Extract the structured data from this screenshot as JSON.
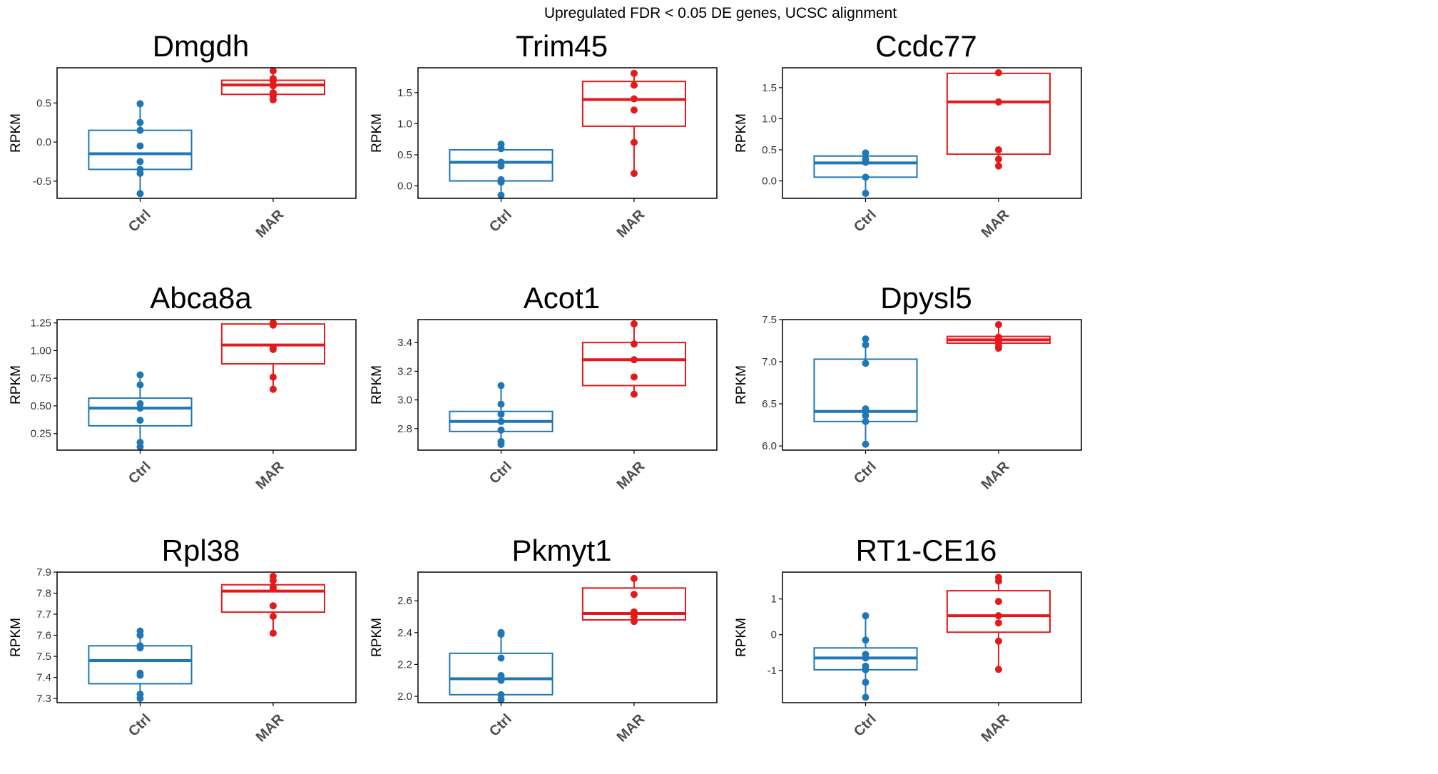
{
  "figure": {
    "suptitle": "Upregulated FDR < 0.05 DE genes, UCSC alignment"
  },
  "colors": {
    "Ctrl": "#1f77b4",
    "MAR": "#e31a1c",
    "axis": "#000000",
    "tick_text": "#333333"
  },
  "chart_data": [
    {
      "type": "box",
      "title": "Dmgdh",
      "ylabel": "RPKM",
      "categories": [
        "Ctrl",
        "MAR"
      ],
      "ylim": [
        -0.72,
        0.95
      ],
      "yticks": [
        -0.5,
        0.0,
        0.5
      ],
      "ytick_labels": [
        "-0.5",
        "0.0",
        "0.5"
      ],
      "boxes": [
        {
          "name": "Ctrl",
          "q1": -0.35,
          "median": -0.15,
          "q3": 0.15,
          "whisker_low": -0.66,
          "whisker_high": 0.49,
          "points": [
            -0.66,
            -0.4,
            -0.35,
            -0.25,
            -0.05,
            0.15,
            0.25,
            0.49
          ]
        },
        {
          "name": "MAR",
          "q1": 0.61,
          "median": 0.73,
          "q3": 0.79,
          "whisker_low": 0.54,
          "whisker_high": 0.91,
          "points": [
            0.54,
            0.59,
            0.63,
            0.72,
            0.78,
            0.81,
            0.91
          ]
        }
      ]
    },
    {
      "type": "box",
      "title": "Trim45",
      "ylabel": "RPKM",
      "categories": [
        "Ctrl",
        "MAR"
      ],
      "ylim": [
        -0.2,
        1.9
      ],
      "yticks": [
        0.0,
        0.5,
        1.0,
        1.5
      ],
      "ytick_labels": [
        "0.0",
        "0.5",
        "1.0",
        "1.5"
      ],
      "boxes": [
        {
          "name": "Ctrl",
          "q1": 0.08,
          "median": 0.38,
          "q3": 0.58,
          "whisker_low": -0.15,
          "whisker_high": 0.67,
          "points": [
            -0.15,
            0.06,
            0.1,
            0.32,
            0.38,
            0.6,
            0.67
          ]
        },
        {
          "name": "MAR",
          "q1": 0.96,
          "median": 1.39,
          "q3": 1.68,
          "whisker_low": 0.2,
          "whisker_high": 1.81,
          "points": [
            0.2,
            0.7,
            1.22,
            1.4,
            1.62,
            1.81
          ]
        }
      ]
    },
    {
      "type": "box",
      "title": "Ccdc77",
      "ylabel": "RPKM",
      "categories": [
        "Ctrl",
        "MAR"
      ],
      "ylim": [
        -0.28,
        1.82
      ],
      "yticks": [
        0.0,
        0.5,
        1.0,
        1.5
      ],
      "ytick_labels": [
        "0.0",
        "0.5",
        "1.0",
        "1.5"
      ],
      "boxes": [
        {
          "name": "Ctrl",
          "q1": 0.06,
          "median": 0.29,
          "q3": 0.4,
          "whisker_low": -0.2,
          "whisker_high": 0.45,
          "points": [
            -0.2,
            0.06,
            0.3,
            0.35,
            0.45
          ]
        },
        {
          "name": "MAR",
          "q1": 0.43,
          "median": 1.27,
          "q3": 1.73,
          "whisker_low": 0.24,
          "whisker_high": 1.74,
          "points": [
            0.24,
            0.35,
            0.5,
            1.27,
            1.74
          ]
        }
      ]
    },
    {
      "type": "box",
      "title": "Abca8a",
      "ylabel": "RPKM",
      "categories": [
        "Ctrl",
        "MAR"
      ],
      "ylim": [
        0.1,
        1.28
      ],
      "yticks": [
        0.25,
        0.5,
        0.75,
        1.0,
        1.25
      ],
      "ytick_labels": [
        "0.25",
        "0.50",
        "0.75",
        "1.00",
        "1.25"
      ],
      "boxes": [
        {
          "name": "Ctrl",
          "q1": 0.32,
          "median": 0.48,
          "q3": 0.57,
          "whisker_low": 0.13,
          "whisker_high": 0.78,
          "points": [
            0.13,
            0.17,
            0.37,
            0.48,
            0.52,
            0.69,
            0.78
          ]
        },
        {
          "name": "MAR",
          "q1": 0.88,
          "median": 1.05,
          "q3": 1.24,
          "whisker_low": 0.65,
          "whisker_high": 1.25,
          "points": [
            0.65,
            0.76,
            1.01,
            1.03,
            1.23,
            1.25
          ]
        }
      ]
    },
    {
      "type": "box",
      "title": "Acot1",
      "ylabel": "RPKM",
      "categories": [
        "Ctrl",
        "MAR"
      ],
      "ylim": [
        2.65,
        3.56
      ],
      "yticks": [
        2.8,
        3.0,
        3.2,
        3.4
      ],
      "ytick_labels": [
        "2.8",
        "3.0",
        "3.2",
        "3.4"
      ],
      "boxes": [
        {
          "name": "Ctrl",
          "q1": 2.78,
          "median": 2.85,
          "q3": 2.92,
          "whisker_low": 2.69,
          "whisker_high": 3.1,
          "points": [
            2.69,
            2.71,
            2.79,
            2.85,
            2.9,
            2.97,
            3.1
          ]
        },
        {
          "name": "MAR",
          "q1": 3.1,
          "median": 3.28,
          "q3": 3.4,
          "whisker_low": 3.04,
          "whisker_high": 3.53,
          "points": [
            3.04,
            3.16,
            3.28,
            3.39,
            3.53
          ]
        }
      ]
    },
    {
      "type": "box",
      "title": "Dpysl5",
      "ylabel": "RPKM",
      "categories": [
        "Ctrl",
        "MAR"
      ],
      "ylim": [
        5.95,
        7.5
      ],
      "yticks": [
        6.0,
        6.5,
        7.0,
        7.5
      ],
      "ytick_labels": [
        "6.0",
        "6.5",
        "7.0",
        "7.5"
      ],
      "boxes": [
        {
          "name": "Ctrl",
          "q1": 6.29,
          "median": 6.41,
          "q3": 7.03,
          "whisker_low": 6.02,
          "whisker_high": 7.27,
          "points": [
            6.02,
            6.29,
            6.36,
            6.41,
            6.44,
            6.98,
            7.2,
            7.27
          ]
        },
        {
          "name": "MAR",
          "q1": 7.22,
          "median": 7.26,
          "q3": 7.3,
          "whisker_low": 7.16,
          "whisker_high": 7.44,
          "points": [
            7.16,
            7.19,
            7.23,
            7.26,
            7.29,
            7.44
          ]
        }
      ]
    },
    {
      "type": "box",
      "title": "Rpl38",
      "ylabel": "RPKM",
      "categories": [
        "Ctrl",
        "MAR"
      ],
      "ylim": [
        7.28,
        7.9
      ],
      "yticks": [
        7.3,
        7.4,
        7.5,
        7.6,
        7.7,
        7.8,
        7.9
      ],
      "ytick_labels": [
        "7.3",
        "7.4",
        "7.5",
        "7.6",
        "7.7",
        "7.8",
        "7.9"
      ],
      "boxes": [
        {
          "name": "Ctrl",
          "q1": 7.37,
          "median": 7.48,
          "q3": 7.55,
          "whisker_low": 7.3,
          "whisker_high": 7.62,
          "points": [
            7.3,
            7.32,
            7.41,
            7.42,
            7.54,
            7.55,
            7.6,
            7.62
          ]
        },
        {
          "name": "MAR",
          "q1": 7.71,
          "median": 7.81,
          "q3": 7.84,
          "whisker_low": 7.61,
          "whisker_high": 7.88,
          "points": [
            7.61,
            7.69,
            7.74,
            7.82,
            7.83,
            7.86,
            7.88
          ]
        }
      ]
    },
    {
      "type": "box",
      "title": "Pkmyt1",
      "ylabel": "RPKM",
      "categories": [
        "Ctrl",
        "MAR"
      ],
      "ylim": [
        1.96,
        2.78
      ],
      "yticks": [
        2.0,
        2.2,
        2.4,
        2.6
      ],
      "ytick_labels": [
        "2.0",
        "2.2",
        "2.4",
        "2.6"
      ],
      "boxes": [
        {
          "name": "Ctrl",
          "q1": 2.01,
          "median": 2.11,
          "q3": 2.27,
          "whisker_low": 1.98,
          "whisker_high": 2.4,
          "points": [
            1.98,
            2.01,
            2.1,
            2.13,
            2.24,
            2.39,
            2.4
          ]
        },
        {
          "name": "MAR",
          "q1": 2.48,
          "median": 2.52,
          "q3": 2.68,
          "whisker_low": 2.47,
          "whisker_high": 2.74,
          "points": [
            2.47,
            2.5,
            2.53,
            2.64,
            2.74
          ]
        }
      ]
    },
    {
      "type": "box",
      "title": "RT1-CE16",
      "ylabel": "RPKM",
      "categories": [
        "Ctrl",
        "MAR"
      ],
      "ylim": [
        -1.9,
        1.75
      ],
      "yticks": [
        -1,
        0,
        1
      ],
      "ytick_labels": [
        "-1",
        "0",
        "1"
      ],
      "boxes": [
        {
          "name": "Ctrl",
          "q1": -0.98,
          "median": -0.65,
          "q3": -0.37,
          "whisker_low": -1.75,
          "whisker_high": 0.53,
          "points": [
            -1.75,
            -1.33,
            -0.98,
            -0.88,
            -0.65,
            -0.55,
            -0.15,
            0.53
          ]
        },
        {
          "name": "MAR",
          "q1": 0.07,
          "median": 0.53,
          "q3": 1.23,
          "whisker_low": -0.97,
          "whisker_high": 1.6,
          "points": [
            -0.97,
            -0.18,
            0.33,
            0.53,
            0.93,
            1.5,
            1.6
          ]
        }
      ]
    }
  ]
}
